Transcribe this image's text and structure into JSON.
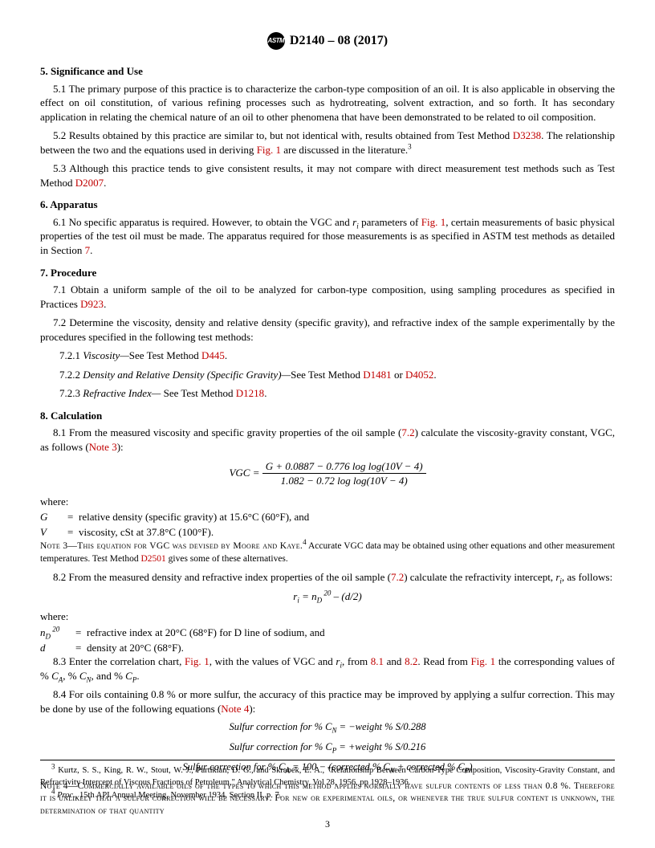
{
  "header": {
    "std_id": "D2140 – 08 (2017)",
    "logo": "ASTM"
  },
  "s5": {
    "title": "5.  Significance and Use",
    "p1": "5.1 The primary purpose of this practice is to characterize the carbon-type composition of an oil. It is also applicable in observing the effect on oil constitution, of various refining processes such as hydrotreating, solvent extraction, and so forth. It has secondary application in relating the chemical nature of an oil to other phenomena that have been demonstrated to be related to oil composition.",
    "p2a": "5.2 Results obtained by this practice are similar to, but not identical with, results obtained from Test Method ",
    "p2_link1": "D3238",
    "p2b": ". The relationship between the two and the equations used in deriving ",
    "p2_link2": "Fig. 1",
    "p2c": " are discussed in the literature.",
    "p2_foot": "3",
    "p3a": "5.3 Although this practice tends to give consistent results, it may not compare with direct measurement test methods such as Test Method ",
    "p3_link": "D2007",
    "p3b": "."
  },
  "s6": {
    "title": "6.  Apparatus",
    "p1a": "6.1 No specific apparatus is required. However, to obtain the VGC and ",
    "ri": "r",
    "ri_sub": "i",
    "p1b": " parameters of ",
    "p1_link": "Fig. 1",
    "p1c": ", certain measurements of basic physical properties of the test oil must be made. The apparatus required for those measurements is as specified in ASTM test methods as detailed in Section ",
    "sec7": "7",
    "p1d": "."
  },
  "s7": {
    "title": "7.  Procedure",
    "p1a": "7.1 Obtain a uniform sample of the oil to be analyzed for carbon-type composition, using sampling procedures as specified in Practices ",
    "p1_link": "D923",
    "p1b": ".",
    "p2": "7.2 Determine the viscosity, density and relative density (specific gravity), and refractive index of the sample experimentally by the procedures specified in the following test methods:",
    "p21a": "7.2.1 ",
    "p21_ital": "Viscosity—",
    "p21b": "See Test Method ",
    "p21_link": "D445",
    "p21c": ".",
    "p22a": "7.2.2 ",
    "p22_ital": "Density and Relative Density (Specific Gravity)—",
    "p22b": "See Test Method ",
    "p22_link1": "D1481",
    "p22_or": " or ",
    "p22_link2": "D4052",
    "p22c": ".",
    "p23a": "7.2.3 ",
    "p23_ital": "Refractive Index—",
    "p23b": " See Test Method ",
    "p23_link": "D1218",
    "p23c": "."
  },
  "s8": {
    "title": "8.  Calculation",
    "p1a": "8.1 From the measured viscosity and specific gravity properties of the oil sample (",
    "p1_link72": "7.2",
    "p1b": ") calculate the viscosity-gravity constant, VGC, as follows (",
    "p1_note": "Note 3",
    "p1c": "):",
    "eq1_lhs": "VGC",
    "eq1_num": "G + 0.0887 − 0.776 log log(10V − 4)",
    "eq1_den": "1.082 − 0.72 log log(10V − 4)",
    "where_label": "where:",
    "w1_sym": "G",
    "w1_eq": "=",
    "w1_txt": "relative density (specific gravity) at 15.6°C (60°F), and",
    "w2_sym": "V",
    "w2_eq": "=",
    "w2_txt": "viscosity, cSt at 37.8°C (100°F).",
    "note3a": "Note 3—This equation for VGC was devised by Moore and Kaye.",
    "note3_foot": "4",
    "note3b": " Accurate VGC data may be obtained using other equations and other measurement temperatures. Test Method ",
    "note3_link": "D2501",
    "note3c": " gives some of these alternatives.",
    "p2a": "8.2 From the measured density and refractive index properties of the oil sample (",
    "p2_link72": "7.2",
    "p2b": ") calculate the refractivity intercept, ",
    "p2c": ", as follows:",
    "eq2_lhs": "r",
    "eq2_lhs_sub": "i",
    "eq2_rhs1": " = n",
    "eq2_D": "D",
    "eq2_20": " 20",
    "eq2_rhs2": " – (d/2)",
    "w3_sym1": "n",
    "w3_D": "D",
    "w3_20": " 20",
    "w3_eq": "=",
    "w3_txt": "refractive index at 20°C (68°F) for D line of sodium, and",
    "w4_sym": "d",
    "w4_eq": "=",
    "w4_txt": "density at 20°C (68°F).",
    "p3a": "8.3 Enter the correlation chart, ",
    "p3_fig1a": "Fig. 1",
    "p3b": ", with the values of VGC and ",
    "p3c": ", from ",
    "p3_81": "8.1",
    "p3_and": " and ",
    "p3_82": "8.2",
    "p3d": ". Read from ",
    "p3_fig1b": "Fig. 1",
    "p3e": " the corresponding values of % ",
    "CA": "C",
    "CA_s": "A",
    "pct_sep": ", % ",
    "CN": "C",
    "CN_s": "N",
    "pct_and": ", and % ",
    "CP": "C",
    "CP_s": "P",
    "p3f": ".",
    "p4a": "8.4 For oils containing 0.8 % or more sulfur, the accuracy of this practice may be improved by applying a sulfur correction. This may be done by use of the following equations (",
    "p4_note": "Note 4",
    "p4b": "):",
    "eqS1_a": "Sulfur correction for %  C",
    "eqS1_N": "N",
    "eqS1_b": " = −weight %  S/0.288",
    "eqS2_a": "Sulfur correction for %  C",
    "eqS2_P": "P",
    "eqS2_b": " = +weight %  S/0.216",
    "eqS3_a": "Sulfur correction  for %  C",
    "eqS3_A": "A",
    "eqS3_b": " = 100 − (corrected % C",
    "eqS3_N2": "N",
    "eqS3_c": " + corrected % C",
    "eqS3_P2": "P",
    "eqS3_d": ")",
    "note4": "Note 4—Commercially available oils of the types to which this method applies normally have sulfur contents of less than 0.8 %. Therefore it is unlikely that a sulfur correction will be necessary. For new or experimental oils, or whenever the true sulfur content is unknown, the determination of that quantity"
  },
  "footnotes": {
    "f3_sup": "3",
    "f3": " Kurtz, S. S., King, R. W., Stout, W. J., Partikian, D. G., and Skrabek, E. A., \"Relationship Between Carbon-Type Composition, Viscosity-Gravity Constant, and Refractivity Intercept of Viscous Fractions of Petroleum,\" Analytical Chemistry, Vol 28, 1956, pp 1928–1936.",
    "f4_sup": "4",
    "f4a": " Proc.",
    "f4b": ", 15th API Annual Meeting, November 1934, Section II, p. 7."
  },
  "page_num": "3"
}
